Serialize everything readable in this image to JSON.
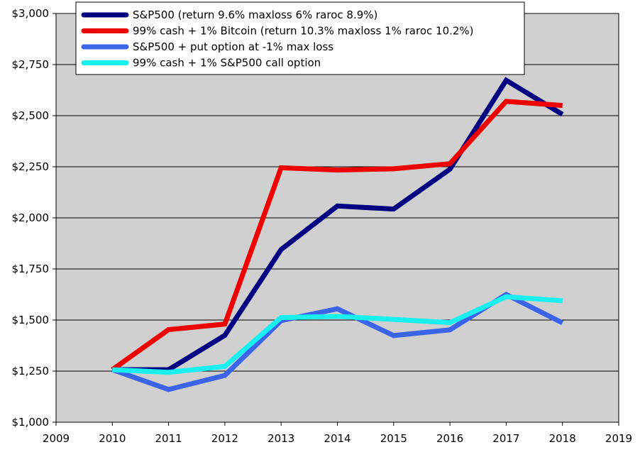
{
  "chart_data": {
    "type": "line",
    "title": "",
    "xlabel": "",
    "ylabel": "",
    "xlim": [
      2009,
      2019
    ],
    "ylim": [
      1000,
      3000
    ],
    "grid": true,
    "legend_position": "top-left",
    "x_tick_labels": [
      "2009",
      "2010",
      "2011",
      "2012",
      "2013",
      "2014",
      "2015",
      "2016",
      "2017",
      "2018",
      "2019"
    ],
    "y_tick_labels": [
      "$1,000",
      "$1,250",
      "$1,500",
      "$1,750",
      "$2,000",
      "$2,250",
      "$2,500",
      "$2,750",
      "$3,000"
    ],
    "x": [
      2010,
      2011,
      2012,
      2013,
      2014,
      2015,
      2016,
      2017,
      2018
    ],
    "series": [
      {
        "name": "S&P500 (return 9.6% maxloss 6% raroc 8.9%)",
        "color": "#000080",
        "values": [
          1257,
          1257,
          1425,
          1845,
          2058,
          2043,
          2238,
          2673,
          2506
        ]
      },
      {
        "name": "99% cash + 1% Bitcoin (return 10.3% maxloss 1% raroc 10.2%)",
        "color": "#ee0000",
        "values": [
          1257,
          1453,
          1480,
          2245,
          2234,
          2240,
          2265,
          2570,
          2550
        ]
      },
      {
        "name": "S&P500 + put option at -1% max loss",
        "color": "#3c64e8",
        "values": [
          1257,
          1160,
          1229,
          1497,
          1555,
          1424,
          1452,
          1625,
          1486
        ]
      },
      {
        "name": "99% cash + 1% S&P500 call option",
        "color": "#18f0f0",
        "values": [
          1257,
          1244,
          1273,
          1512,
          1518,
          1503,
          1487,
          1614,
          1594
        ]
      }
    ]
  }
}
